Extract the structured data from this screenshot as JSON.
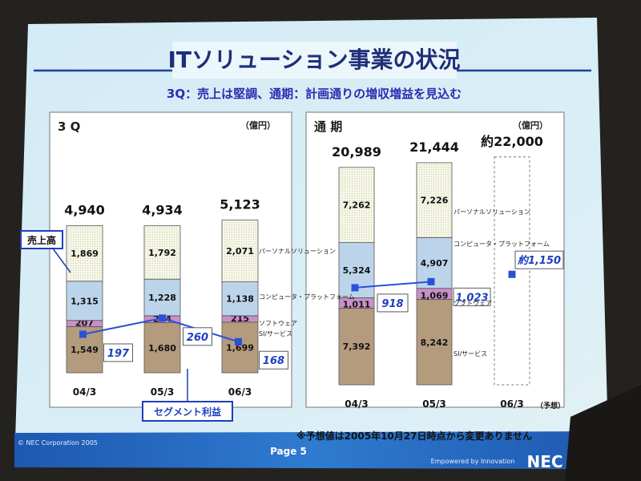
{
  "slide": {
    "title": "ITソリューション事業の状況",
    "subtitle": "3Q：売上は堅調、通期：計画通りの増収増益を見込む",
    "footnote": "※予想値は2005年10月27日時点から変更ありません",
    "copyright": "© NEC Corporation 2005",
    "page": "Page 5",
    "tagline": "Empowered by Innovation",
    "logo": "NEC"
  },
  "colors": {
    "si": "#b49b7e",
    "software": "#c890c6",
    "computer": "#bcd4ea",
    "personal": "#f7f7e6",
    "profit_line": "#2a50d8",
    "callout": "#1f3fc0",
    "title_bar": "#2b6cc4"
  },
  "chart_data": [
    {
      "type": "bar",
      "stacked": true,
      "title": "3 Q",
      "unit": "（億円）",
      "categories": [
        "04/3",
        "05/3",
        "06/3"
      ],
      "totals": [
        "4,940",
        "4,934",
        "5,123"
      ],
      "series": [
        {
          "name": "SI/サービス",
          "values": [
            1549,
            1680,
            1699
          ],
          "labels": [
            "1,549",
            "1,680",
            "1,699"
          ]
        },
        {
          "name": "ソフトウェア",
          "values": [
            207,
            234,
            215
          ],
          "labels": [
            "207",
            "234",
            "215"
          ]
        },
        {
          "name": "コンピュータ・プラットフォーム",
          "values": [
            1315,
            1228,
            1138
          ],
          "labels": [
            "1,315",
            "1,228",
            "1,138"
          ]
        },
        {
          "name": "パーソナルソリューション",
          "values": [
            1869,
            1792,
            2071
          ],
          "labels": [
            "1,869",
            "1,792",
            "2,071"
          ]
        }
      ],
      "segment_profit": {
        "values": [
          197,
          260,
          168
        ],
        "labels": [
          "197",
          "260",
          "168"
        ]
      },
      "callouts": {
        "sales": "売上高",
        "profit": "セグメント利益"
      },
      "ylim": [
        0,
        5300
      ]
    },
    {
      "type": "bar",
      "stacked": true,
      "title": "通 期",
      "unit": "（億円）",
      "categories": [
        "04/3",
        "05/3",
        "06/3"
      ],
      "category_notes": [
        "",
        "",
        "（予想）"
      ],
      "totals": [
        "20,989",
        "21,444",
        "約22,000"
      ],
      "series": [
        {
          "name": "SI/サービス",
          "values": [
            7392,
            8242,
            null
          ],
          "labels": [
            "7,392",
            "8,242",
            ""
          ]
        },
        {
          "name": "ソフトウェア",
          "values": [
            1011,
            1069,
            null
          ],
          "labels": [
            "1,011",
            "1,069",
            ""
          ]
        },
        {
          "name": "コンピュータ・プラットフォーム",
          "values": [
            5324,
            4907,
            null
          ],
          "labels": [
            "5,324",
            "4,907",
            ""
          ]
        },
        {
          "name": "パーソナルソリューション",
          "values": [
            7262,
            7226,
            null
          ],
          "labels": [
            "7,262",
            "7,226",
            ""
          ]
        }
      ],
      "forecast_total": 22000,
      "segment_profit": {
        "values": [
          918,
          1023,
          1150
        ],
        "labels": [
          "918",
          "1,023",
          "約1,150"
        ]
      },
      "ylim": [
        0,
        22600
      ]
    }
  ]
}
